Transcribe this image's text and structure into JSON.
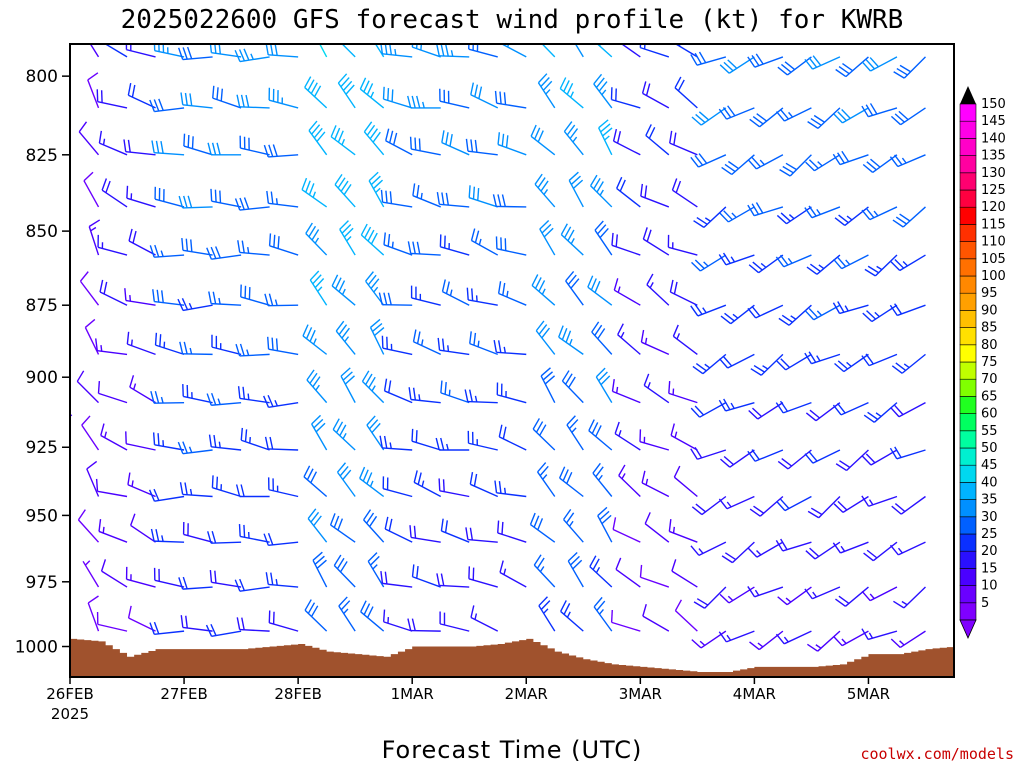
{
  "header": {
    "title": "2025022600 GFS forecast wind profile (kt) for KWRB"
  },
  "credit": "coolwx.com/models",
  "colors": {
    "terrain": "#a0522d",
    "frame": "#000000",
    "credit": "#c80000"
  },
  "chart_data": {
    "type": "wind-barb-time-height",
    "title": "2025022600 GFS forecast wind profile (kt) for KWRB",
    "xlabel": "Forecast Time (UTC)",
    "ylabel": "",
    "x_ticks": [
      {
        "label": "26FEB",
        "sublabel": "2025",
        "hour": 0
      },
      {
        "label": "27FEB",
        "hour": 24
      },
      {
        "label": "28FEB",
        "hour": 48
      },
      {
        "label": "1MAR",
        "hour": 72
      },
      {
        "label": "2MAR",
        "hour": 96
      },
      {
        "label": "3MAR",
        "hour": 120
      },
      {
        "label": "4MAR",
        "hour": 144
      },
      {
        "label": "5MAR",
        "hour": 168
      }
    ],
    "x_range_hours": [
      0,
      186
    ],
    "y_ticks": [
      800,
      825,
      850,
      875,
      900,
      925,
      950,
      975,
      1000
    ],
    "y_range_hpa": [
      790,
      1012
    ],
    "y_scale": "log-pressure",
    "legend": {
      "placement": "right",
      "title": "",
      "unit": "kt",
      "levels": [
        {
          "value": 5,
          "color": "#7f00ff"
        },
        {
          "value": 10,
          "color": "#6a00ff"
        },
        {
          "value": 15,
          "color": "#4a00ff"
        },
        {
          "value": 20,
          "color": "#2a10ff"
        },
        {
          "value": 25,
          "color": "#0a30ff"
        },
        {
          "value": 30,
          "color": "#0060ff"
        },
        {
          "value": 35,
          "color": "#0090ff"
        },
        {
          "value": 40,
          "color": "#00b4ff"
        },
        {
          "value": 45,
          "color": "#00d8f0"
        },
        {
          "value": 50,
          "color": "#00f0d0"
        },
        {
          "value": 55,
          "color": "#00ffa0"
        },
        {
          "value": 60,
          "color": "#00ff60"
        },
        {
          "value": 65,
          "color": "#20ff20"
        },
        {
          "value": 70,
          "color": "#80ff00"
        },
        {
          "value": 75,
          "color": "#c0ff00"
        },
        {
          "value": 80,
          "color": "#ffff00"
        },
        {
          "value": 85,
          "color": "#ffe000"
        },
        {
          "value": 90,
          "color": "#ffc000"
        },
        {
          "value": 95,
          "color": "#ffa000"
        },
        {
          "value": 100,
          "color": "#ff8800"
        },
        {
          "value": 105,
          "color": "#ff7000"
        },
        {
          "value": 110,
          "color": "#ff5500"
        },
        {
          "value": 115,
          "color": "#ff3000"
        },
        {
          "value": 120,
          "color": "#ff0000"
        },
        {
          "value": 125,
          "color": "#ff0040"
        },
        {
          "value": 130,
          "color": "#ff0070"
        },
        {
          "value": 135,
          "color": "#ff00a0"
        },
        {
          "value": 140,
          "color": "#ff00c8"
        },
        {
          "value": 145,
          "color": "#ff00e8"
        },
        {
          "value": 150,
          "color": "#ff00ff"
        }
      ]
    },
    "barb_levels_hpa": [
      794,
      810,
      825,
      842,
      858,
      875,
      892,
      909,
      926,
      943,
      960,
      977,
      994
    ],
    "barb_times_hours": [
      0,
      6,
      12,
      18,
      24,
      30,
      36,
      42,
      48,
      54,
      60,
      66,
      72,
      78,
      84,
      90,
      96,
      102,
      108,
      114,
      120,
      126,
      132,
      138,
      144,
      150,
      156,
      162,
      168,
      174,
      180
    ],
    "surface_pressure_series": {
      "hours": [
        0,
        6,
        12,
        18,
        24,
        30,
        36,
        42,
        48,
        54,
        60,
        66,
        72,
        78,
        84,
        90,
        96,
        102,
        108,
        114,
        120,
        126,
        132,
        138,
        144,
        150,
        156,
        162,
        168,
        174,
        180,
        186
      ],
      "pressure": [
        997,
        998,
        1004,
        1001,
        1001,
        1001,
        1001,
        1000,
        999,
        1002,
        1003,
        1004,
        1000,
        1000,
        1000,
        999,
        997,
        1002,
        1005,
        1007,
        1008,
        1009,
        1010,
        1010,
        1008,
        1008,
        1008,
        1007,
        1003,
        1003,
        1001,
        1000
      ]
    },
    "wind_regimes": [
      {
        "hours": [
          0,
          6
        ],
        "speed_kt": [
          8,
          12
        ],
        "dir_deg": 330
      },
      {
        "hours": [
          12,
          18
        ],
        "speed_kt": [
          10,
          20
        ],
        "dir_deg": 290
      },
      {
        "hours": [
          24,
          48
        ],
        "speed_kt": [
          20,
          32
        ],
        "dir_deg": 275
      },
      {
        "hours": [
          54,
          66
        ],
        "speed_kt": [
          28,
          40
        ],
        "dir_deg": 320
      },
      {
        "hours": [
          72,
          96
        ],
        "speed_kt": [
          18,
          32
        ],
        "dir_deg": 285
      },
      {
        "hours": [
          102,
          114
        ],
        "speed_kt": [
          25,
          36
        ],
        "dir_deg": 320
      },
      {
        "hours": [
          120,
          132
        ],
        "speed_kt": [
          10,
          22
        ],
        "dir_deg": 300
      },
      {
        "hours": [
          138,
          180
        ],
        "speed_kt": [
          15,
          30
        ],
        "dir_deg": 240
      }
    ]
  }
}
